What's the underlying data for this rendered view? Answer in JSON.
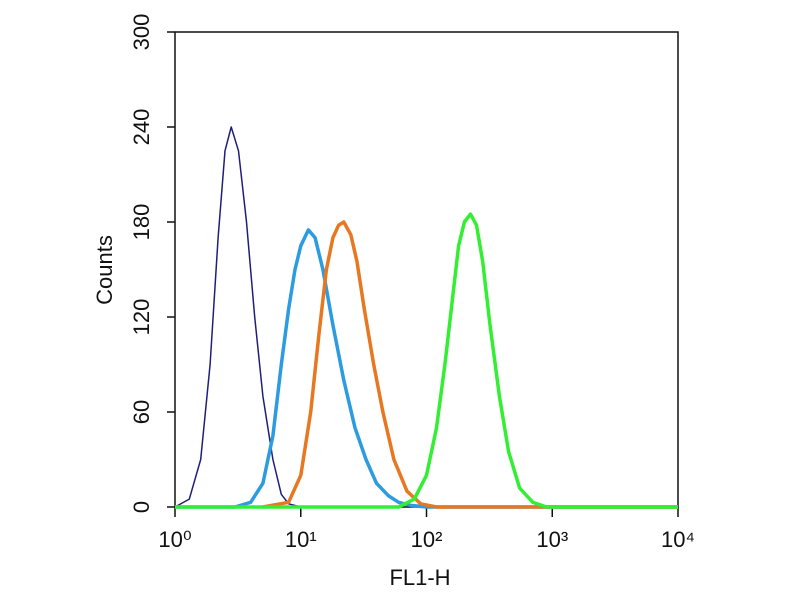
{
  "chart_data": {
    "type": "line",
    "x_label": "FL1-H",
    "y_label": "Counts",
    "xscale": "log",
    "xlim": [
      1,
      10000
    ],
    "xticks": [
      {
        "value": 1,
        "label": "10⁰"
      },
      {
        "value": 10,
        "label": "10¹"
      },
      {
        "value": 100,
        "label": "10²"
      },
      {
        "value": 1000,
        "label": "10³"
      },
      {
        "value": 10000,
        "label": "10⁴"
      }
    ],
    "ylim": [
      0,
      300
    ],
    "yticks": [
      0,
      60,
      120,
      180,
      240,
      300
    ],
    "series": [
      {
        "color": "#1f1f7a",
        "width": 1.5,
        "x": [
          1,
          1.3,
          1.6,
          1.9,
          2.2,
          2.5,
          2.8,
          3.2,
          3.7,
          4.3,
          5,
          6,
          7,
          8,
          10,
          20,
          50
        ],
        "values": [
          0,
          5,
          30,
          90,
          170,
          225,
          240,
          225,
          180,
          120,
          70,
          30,
          8,
          2,
          0,
          0,
          0
        ]
      },
      {
        "color": "#2c9be0",
        "width": 3.5,
        "x": [
          1,
          3,
          4,
          5,
          6,
          7,
          8,
          9,
          10,
          11.5,
          13,
          15,
          18,
          22,
          27,
          33,
          40,
          50,
          60,
          75,
          100,
          10000
        ],
        "values": [
          0,
          0,
          3,
          15,
          45,
          90,
          125,
          150,
          165,
          175,
          170,
          150,
          115,
          80,
          50,
          30,
          15,
          7,
          3,
          1,
          0,
          0
        ]
      },
      {
        "color": "#e87722",
        "width": 3.5,
        "x": [
          5,
          8,
          10,
          12,
          14,
          16,
          18,
          20,
          22,
          25,
          28,
          32,
          38,
          45,
          55,
          70,
          90,
          120,
          10000
        ],
        "values": [
          0,
          3,
          20,
          60,
          110,
          150,
          170,
          178,
          180,
          172,
          155,
          125,
          90,
          60,
          30,
          10,
          2,
          0,
          0
        ]
      },
      {
        "color": "#33ee33",
        "width": 3.5,
        "x": [
          1,
          60,
          80,
          100,
          120,
          140,
          160,
          180,
          200,
          224,
          250,
          280,
          320,
          380,
          450,
          550,
          700,
          900,
          10000
        ],
        "values": [
          0,
          0,
          5,
          20,
          50,
          90,
          130,
          165,
          180,
          185,
          178,
          155,
          115,
          70,
          35,
          12,
          3,
          0,
          0
        ]
      }
    ]
  }
}
